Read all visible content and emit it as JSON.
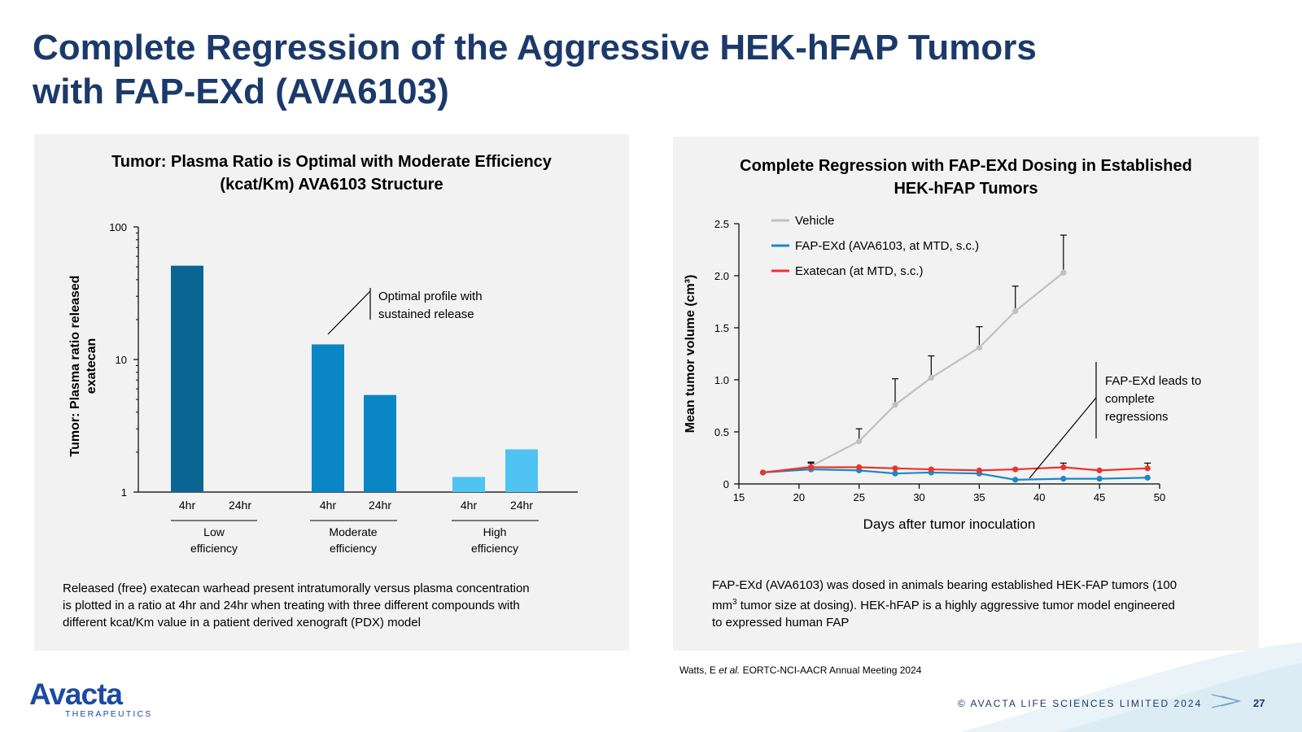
{
  "slide": {
    "title_line1": "Complete Regression of the Aggressive HEK-hFAP Tumors",
    "title_line2": "with FAP-EXd (AVA6103)",
    "citation_authors": "Watts, E ",
    "citation_etal": "et al.",
    "citation_meeting": " EORTC-NCI-AACR Annual Meeting 2024",
    "logo_word": "Avacta",
    "logo_sub": "THERAPEUTICS",
    "copyright": "© AVACTA LIFE SCIENCES LIMITED 2024",
    "page_number": "27",
    "colors": {
      "title": "#1b3a6b",
      "panel_bg": "#f2f2f2",
      "logo": "#1c4ba0"
    }
  },
  "left_panel": {
    "title_line1": "Tumor: Plasma Ratio is Optimal with Moderate Efficiency",
    "title_line2": "(kcat/Km) AVA6103 Structure",
    "caption_line1": "Released (free) exatecan warhead present intratumorally versus plasma concentration",
    "caption_line2": "is plotted in a ratio at 4hr and 24hr when treating with three different compounds with",
    "caption_line3": "different kcat/Km value in a patient derived xenograft (PDX) model"
  },
  "right_panel": {
    "title_line1": "Complete Regression with FAP-EXd Dosing in Established",
    "title_line2": "HEK-hFAP Tumors",
    "caption_line1": "FAP-EXd (AVA6103) was dosed in animals bearing established HEK-FAP tumors (100",
    "caption_line2_a": "mm",
    "caption_line2_sup": "3",
    "caption_line2_b": " tumor size at dosing).  HEK-hFAP is a highly aggressive tumor model engineered",
    "caption_line3": "to expressed human FAP"
  },
  "chart_data": [
    {
      "type": "bar",
      "ylabel_line1": "Tumor: Plasma ratio released",
      "ylabel_line2": "exatecan",
      "yscale": "log",
      "ylim": [
        1,
        100
      ],
      "yticks": [
        1,
        10,
        100
      ],
      "ytick_labels": [
        "1",
        "10",
        "100"
      ],
      "categories": [
        "4hr",
        "24hr",
        "4hr",
        "24hr",
        "4hr",
        "24hr"
      ],
      "groups": [
        {
          "label_line1": "Low",
          "label_line2": "efficiency"
        },
        {
          "label_line1": "Moderate",
          "label_line2": "efficiency"
        },
        {
          "label_line1": "High",
          "label_line2": "efficiency"
        }
      ],
      "values": [
        51,
        null,
        13,
        5.4,
        1.3,
        2.1
      ],
      "bar_colors": [
        "#0b6592",
        "#0b6592",
        "#0a86c4",
        "#0a86c4",
        "#4fc3f2",
        "#4fc3f2"
      ],
      "annotation_line1": "Optimal profile with",
      "annotation_line2": "sustained release",
      "grid": false
    },
    {
      "type": "line",
      "xlabel": "Days after tumor inoculation",
      "ylabel": "Mean tumor volume (cm³)",
      "xlim": [
        15,
        50
      ],
      "ylim": [
        0,
        2.5
      ],
      "xticks": [
        15,
        20,
        25,
        30,
        35,
        40,
        45,
        50
      ],
      "yticks": [
        0,
        0.5,
        1.0,
        1.5,
        2.0,
        2.5
      ],
      "ytick_labels": [
        "0",
        "0.5",
        "1.0",
        "1.5",
        "2.0",
        "2.5"
      ],
      "legend_position": "top-left",
      "grid": false,
      "series": [
        {
          "name": "Vehicle",
          "color": "#c0c0c0",
          "x": [
            17,
            21,
            25,
            28,
            31,
            35,
            38,
            42
          ],
          "y": [
            0.11,
            0.17,
            0.41,
            0.76,
            1.02,
            1.31,
            1.66,
            2.03
          ],
          "err": [
            0,
            0.03,
            0.12,
            0.25,
            0.21,
            0.2,
            0.24,
            0.36
          ]
        },
        {
          "name": "FAP-EXd (AVA6103, at MTD, s.c.)",
          "color": "#1a88c8",
          "x": [
            17,
            21,
            25,
            28,
            31,
            35,
            38,
            42,
            45,
            49
          ],
          "y": [
            0.11,
            0.14,
            0.13,
            0.1,
            0.11,
            0.1,
            0.04,
            0.05,
            0.05,
            0.06
          ],
          "err": [
            0,
            0,
            0,
            0,
            0,
            0,
            0,
            0,
            0,
            0
          ]
        },
        {
          "name": "Exatecan (at MTD, s.c.)",
          "color": "#e8352c",
          "x": [
            17,
            21,
            25,
            28,
            31,
            35,
            38,
            42,
            45,
            49
          ],
          "y": [
            0.11,
            0.16,
            0.16,
            0.15,
            0.14,
            0.13,
            0.14,
            0.16,
            0.13,
            0.15
          ],
          "err": [
            0,
            0.05,
            0,
            0,
            0,
            0,
            0,
            0.04,
            0,
            0.05
          ]
        }
      ],
      "annotation_line1": "FAP-EXd leads to",
      "annotation_line2": "complete",
      "annotation_line3": "regressions"
    }
  ]
}
